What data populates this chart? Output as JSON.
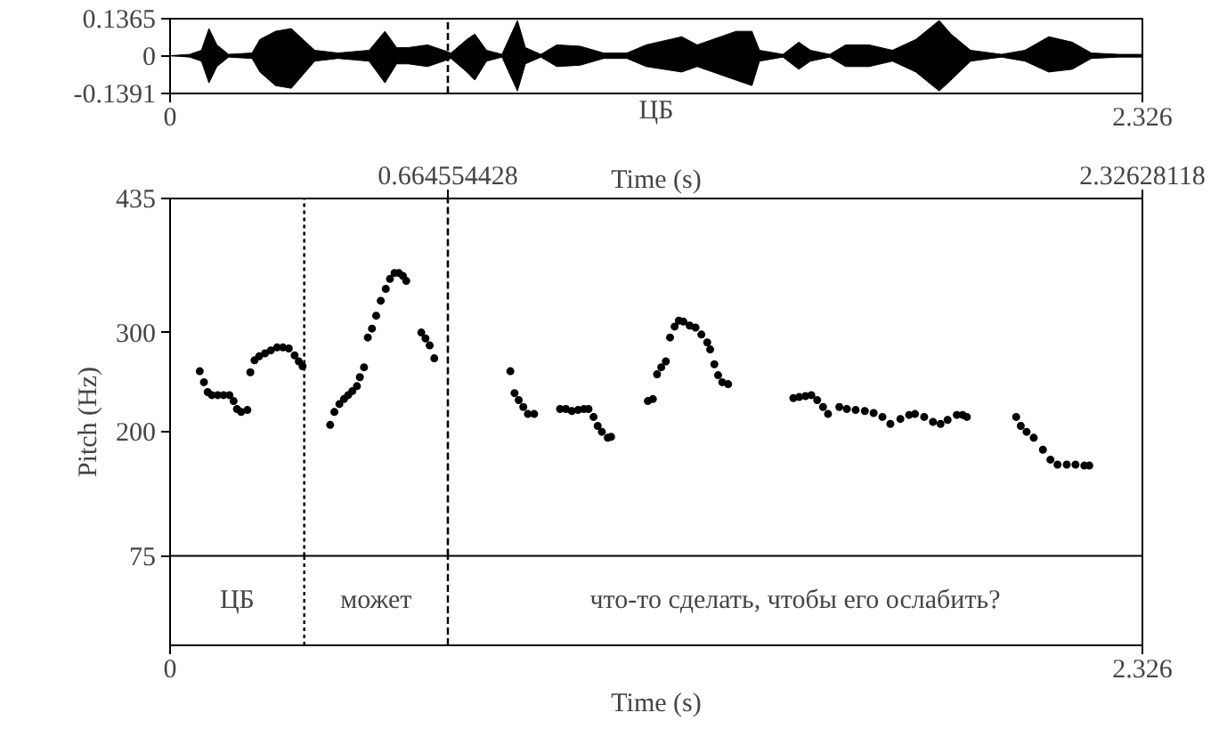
{
  "chart_data": [
    {
      "type": "area",
      "xlabel": "ЦБ",
      "xlim": [
        0,
        2.326
      ],
      "xticks": [
        0,
        2.326
      ],
      "ylim": [
        -0.1391,
        0.1365
      ],
      "yticks": [
        -0.1391,
        0,
        0.1365
      ],
      "x": [
        0,
        0.047,
        0.075,
        0.093,
        0.112,
        0.14,
        0.196,
        0.215,
        0.252,
        0.29,
        0.318,
        0.346,
        0.402,
        0.476,
        0.514,
        0.542,
        0.57,
        0.616,
        0.654,
        0.672,
        0.71,
        0.729,
        0.757,
        0.794,
        0.831,
        0.85,
        0.887,
        0.925,
        0.981,
        1.037,
        1.093,
        1.139,
        1.224,
        1.261,
        1.354,
        1.392,
        1.41,
        1.466,
        1.504,
        1.532,
        1.578,
        1.616,
        1.672,
        1.728,
        1.784,
        1.84,
        1.868,
        1.915,
        1.989,
        2.045,
        2.102,
        2.158,
        2.204,
        2.27,
        2.326
      ],
      "series": [
        {
          "color": "#000000",
          "values": [
            0,
            0.005,
            0.02,
            0.1,
            0.04,
            0.005,
            0.01,
            0.06,
            0.09,
            0.1,
            0.06,
            0.02,
            0.01,
            0.02,
            0.09,
            0.03,
            0.03,
            0.04,
            0.02,
            0.01,
            0.06,
            0.08,
            0.02,
            0.005,
            0.13,
            0.03,
            0.005,
            0.04,
            0.035,
            0.01,
            0.01,
            0.04,
            0.07,
            0.04,
            0.09,
            0.09,
            0.02,
            0.005,
            0.05,
            0.02,
            0.005,
            0.04,
            0.04,
            0.02,
            0.06,
            0.13,
            0.08,
            0.02,
            0.005,
            0.02,
            0.07,
            0.05,
            0.01,
            0.005,
            0.005
          ]
        },
        {
          "color": "#000000",
          "values": [
            0,
            -0.005,
            -0.02,
            -0.1,
            -0.04,
            -0.005,
            -0.01,
            -0.06,
            -0.11,
            -0.12,
            -0.07,
            -0.02,
            -0.01,
            -0.02,
            -0.1,
            -0.03,
            -0.03,
            -0.04,
            -0.02,
            -0.01,
            -0.06,
            -0.09,
            -0.02,
            -0.005,
            -0.13,
            -0.03,
            -0.005,
            -0.04,
            -0.035,
            -0.01,
            -0.01,
            -0.04,
            -0.06,
            -0.04,
            -0.09,
            -0.11,
            -0.02,
            -0.005,
            -0.05,
            -0.02,
            -0.005,
            -0.04,
            -0.04,
            -0.02,
            -0.06,
            -0.13,
            -0.09,
            -0.02,
            -0.005,
            -0.02,
            -0.06,
            -0.05,
            -0.01,
            -0.005,
            -0.005
          ]
        }
      ],
      "ref_lines": [
        {
          "axis": "x",
          "value": 0.664554428,
          "line_style": "dashed"
        }
      ]
    },
    {
      "type": "scatter",
      "xlabel": "Time (s)",
      "ylabel": "Pitch (Hz)",
      "x2label": "Time (s)",
      "xlim": [
        0,
        2.326
      ],
      "xticks": [
        0,
        2.326
      ],
      "x2lim": [
        0,
        2.32628118
      ],
      "x2ticks": [
        0.664554428,
        2.32628118
      ],
      "ylim": [
        75,
        435
      ],
      "yticks": [
        75,
        200,
        300,
        435
      ],
      "marker": "circle",
      "x": [
        0.071,
        0.081,
        0.09,
        0.1,
        0.114,
        0.128,
        0.142,
        0.152,
        0.16,
        0.17,
        0.185,
        0.192,
        0.202,
        0.213,
        0.227,
        0.241,
        0.256,
        0.27,
        0.284,
        0.298,
        0.308,
        0.317,
        0.383,
        0.393,
        0.405,
        0.416,
        0.426,
        0.436,
        0.447,
        0.454,
        0.464,
        0.473,
        0.483,
        0.493,
        0.504,
        0.516,
        0.526,
        0.537,
        0.547,
        0.557,
        0.565,
        0.601,
        0.611,
        0.621,
        0.632,
        0.814,
        0.824,
        0.834,
        0.845,
        0.856,
        0.871,
        0.933,
        0.947,
        0.961,
        0.976,
        0.99,
        1.001,
        1.013,
        1.023,
        1.033,
        1.047,
        1.055,
        1.143,
        1.155,
        1.165,
        1.175,
        1.186,
        1.196,
        1.207,
        1.217,
        1.228,
        1.243,
        1.257,
        1.271,
        1.285,
        1.292,
        1.302,
        1.311,
        1.321,
        1.335,
        1.491,
        1.505,
        1.52,
        1.534,
        1.548,
        1.562,
        1.574,
        1.601,
        1.619,
        1.64,
        1.662,
        1.683,
        1.704,
        1.723,
        1.747,
        1.768,
        1.782,
        1.804,
        1.825,
        1.843,
        1.86,
        1.882,
        1.896,
        1.906,
        2.024,
        2.035,
        2.049,
        2.066,
        2.088,
        2.106,
        2.123,
        2.145,
        2.166,
        2.187,
        2.199
      ],
      "series": [
        {
          "color": "#000000",
          "values": [
            261,
            250,
            240,
            237,
            237,
            237,
            237,
            231,
            223,
            220,
            222,
            260,
            272,
            276,
            279,
            282,
            285,
            285,
            284,
            277,
            271,
            266,
            207,
            220,
            228,
            233,
            237,
            241,
            246,
            255,
            265,
            295,
            304,
            317,
            332,
            344,
            354,
            360,
            360,
            357,
            352,
            300,
            294,
            287,
            274,
            261,
            239,
            232,
            225,
            218,
            218,
            223,
            223,
            221,
            222,
            223,
            223,
            215,
            206,
            200,
            194,
            195,
            231,
            233,
            258,
            265,
            271,
            295,
            306,
            312,
            311,
            307,
            305,
            298,
            290,
            283,
            268,
            257,
            250,
            248,
            234,
            235,
            236,
            237,
            232,
            225,
            218,
            225,
            223,
            222,
            221,
            219,
            215,
            208,
            213,
            217,
            218,
            215,
            210,
            208,
            212,
            217,
            217,
            215,
            215,
            206,
            200,
            194,
            182,
            172,
            167,
            167,
            167,
            166,
            166
          ]
        }
      ],
      "ref_lines": [
        {
          "axis": "x",
          "value": 0.321,
          "line_style": "dotted"
        },
        {
          "axis": "x",
          "value": 0.664554428,
          "line_style": "dashed"
        }
      ],
      "annotations": [
        "ЦБ",
        "может",
        "что-то сделать, чтобы его ослабить?"
      ]
    }
  ]
}
